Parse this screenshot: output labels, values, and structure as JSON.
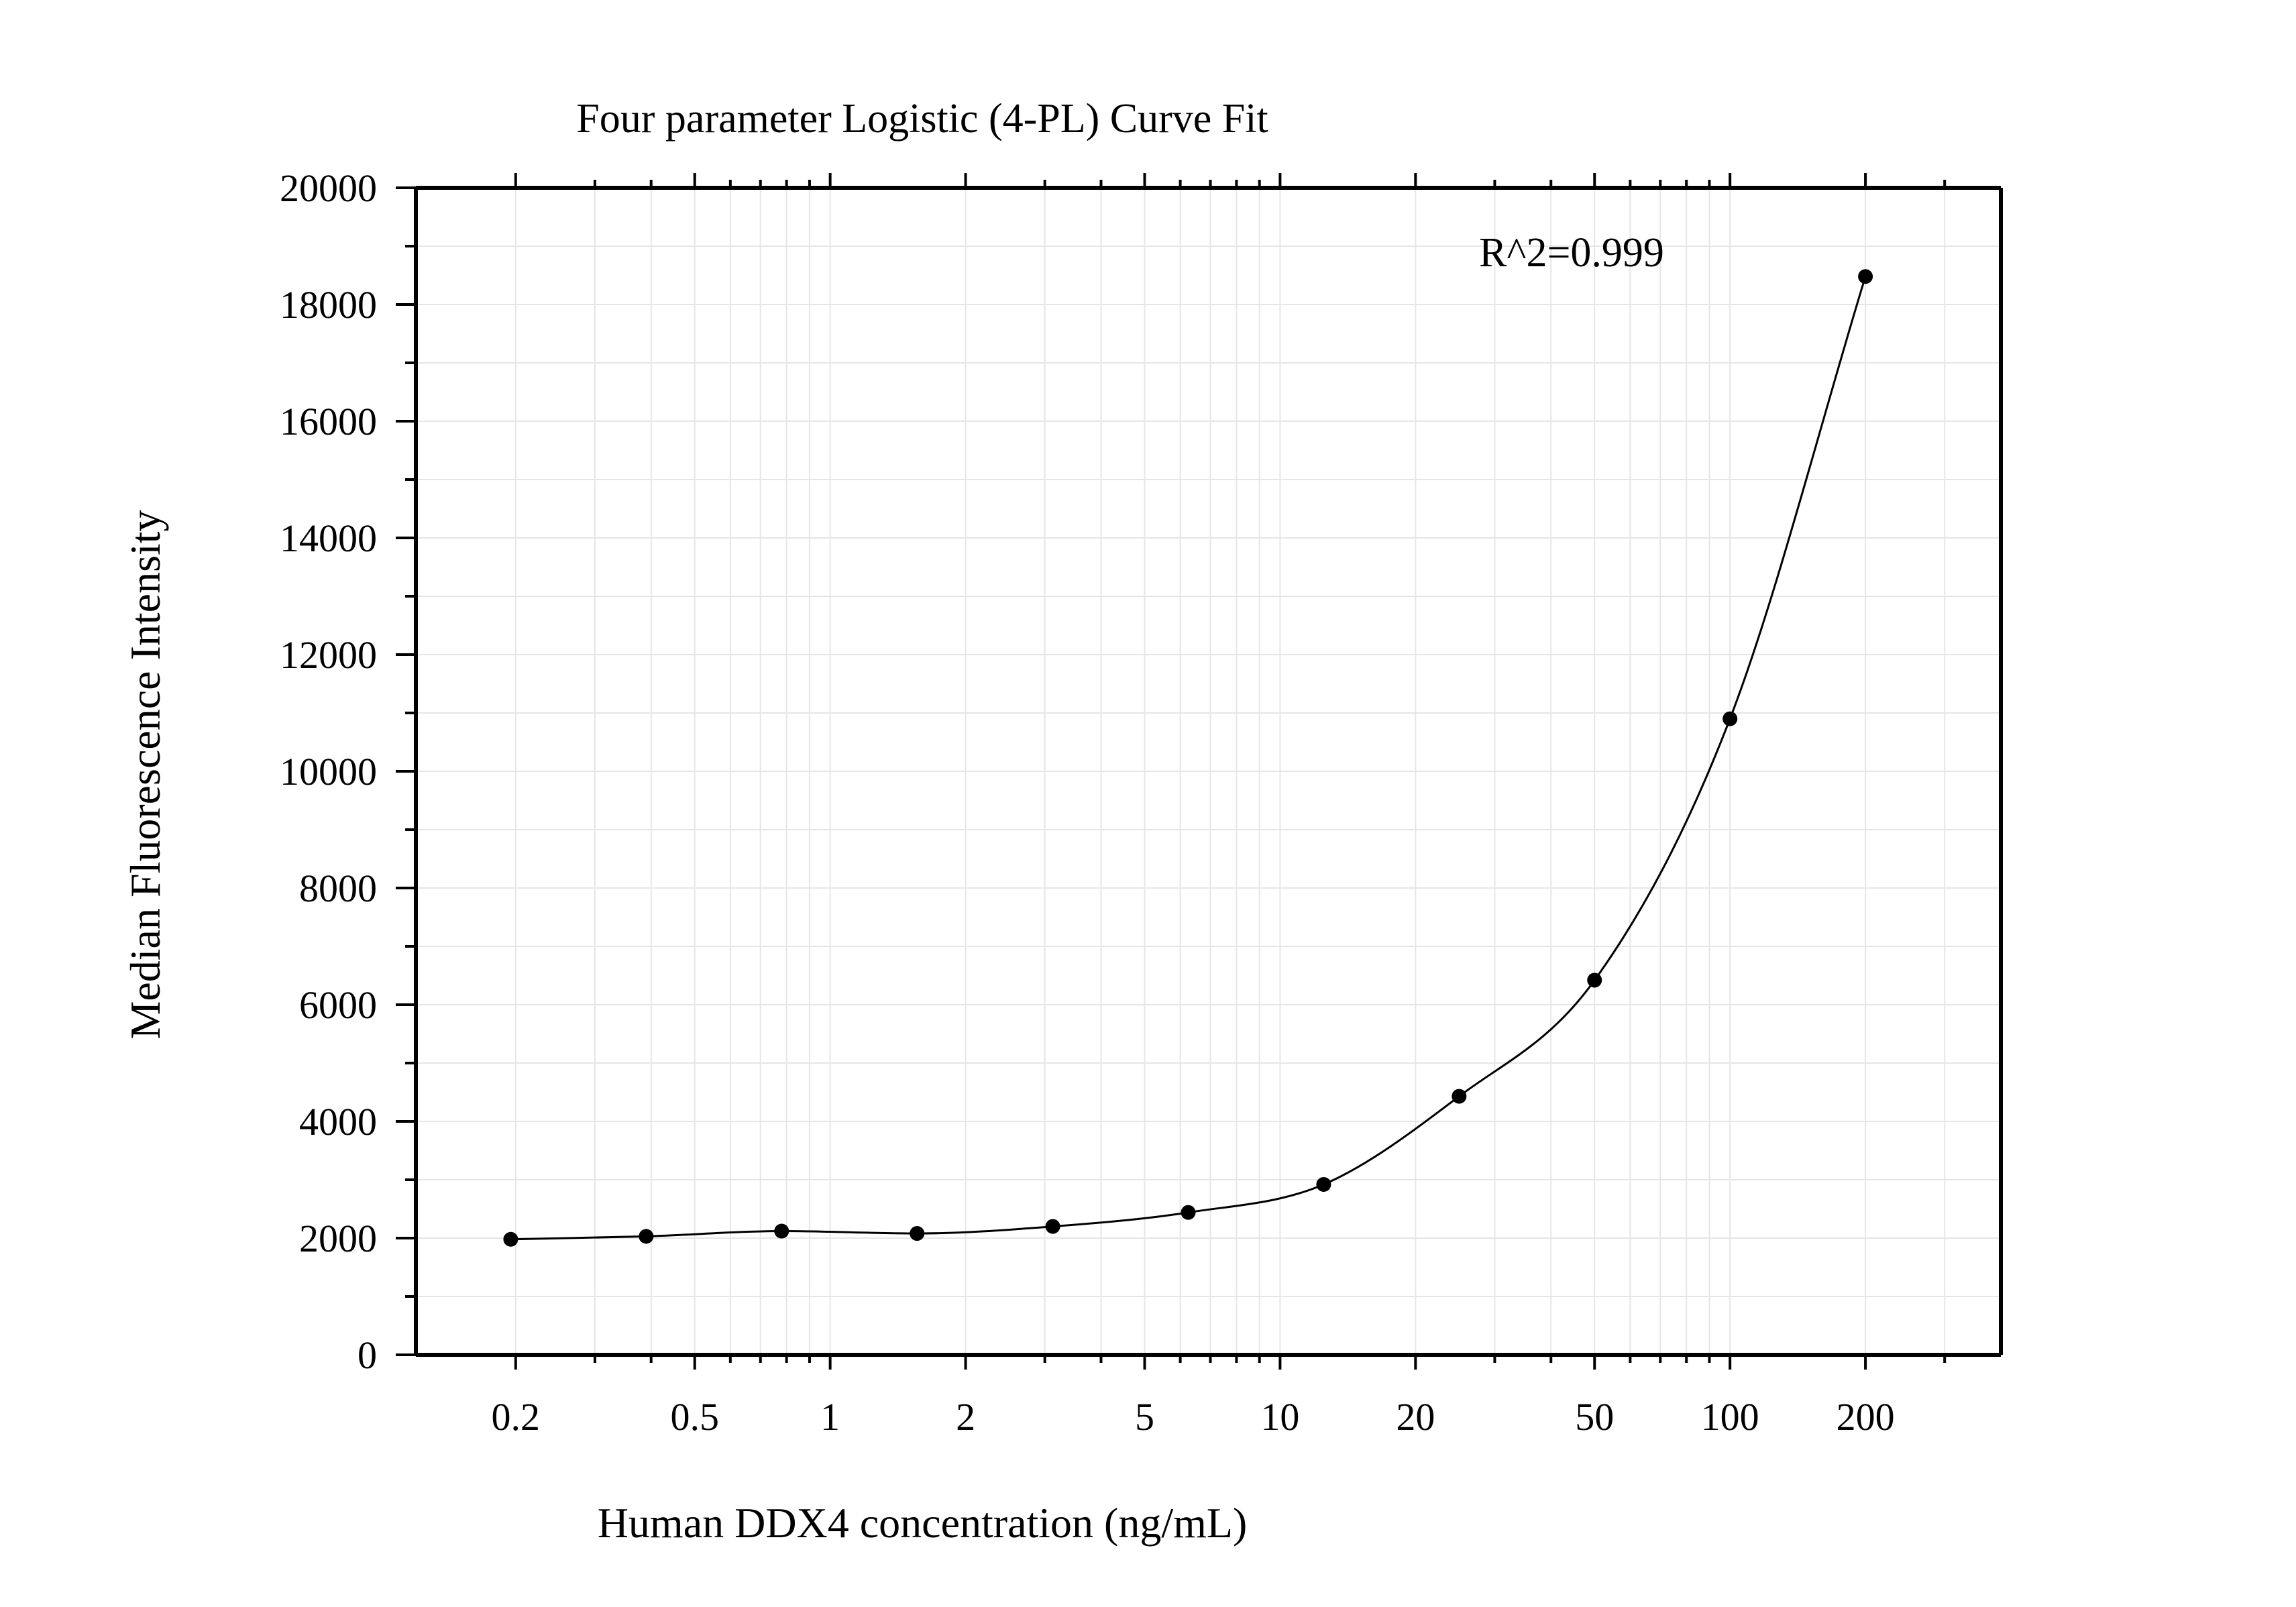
{
  "chart_data": {
    "type": "scatter",
    "title": "Four parameter Logistic (4-PL) Curve Fit",
    "xlabel": "Human DDX4 concentration (ng/mL)",
    "ylabel": "Median Fluorescence Intensity",
    "x_scale": "log",
    "xlim": [
      0.12,
      400
    ],
    "ylim": [
      0,
      20000
    ],
    "x_ticks": [
      0.2,
      0.5,
      1,
      2,
      5,
      10,
      20,
      50,
      100,
      200
    ],
    "x_tick_labels": [
      "0.2",
      "0.5",
      "1",
      "2",
      "5",
      "10",
      "20",
      "50",
      "100",
      "200"
    ],
    "y_ticks": [
      0,
      2000,
      4000,
      6000,
      8000,
      10000,
      12000,
      14000,
      16000,
      18000,
      20000
    ],
    "y_tick_labels": [
      "0",
      "2000",
      "4000",
      "6000",
      "8000",
      "10000",
      "12000",
      "14000",
      "16000",
      "18000",
      "20000"
    ],
    "grid": true,
    "annotation": "R^2=0.999",
    "series": [
      {
        "points": [
          {
            "x": 0.195,
            "y": 1980
          },
          {
            "x": 0.39,
            "y": 2030
          },
          {
            "x": 0.78,
            "y": 2120
          },
          {
            "x": 1.56,
            "y": 2080
          },
          {
            "x": 3.125,
            "y": 2200
          },
          {
            "x": 6.25,
            "y": 2440
          },
          {
            "x": 12.5,
            "y": 2920
          },
          {
            "x": 25,
            "y": 4430
          },
          {
            "x": 50,
            "y": 6420
          },
          {
            "x": 100,
            "y": 10900
          },
          {
            "x": 200,
            "y": 18480
          }
        ],
        "fit": {
          "model": "4PL",
          "range": [
            0.195,
            200
          ]
        }
      }
    ],
    "colors": {
      "points": "#000000",
      "curve": "#000000",
      "grid": "#e6e6e6",
      "axes": "#000000"
    }
  }
}
